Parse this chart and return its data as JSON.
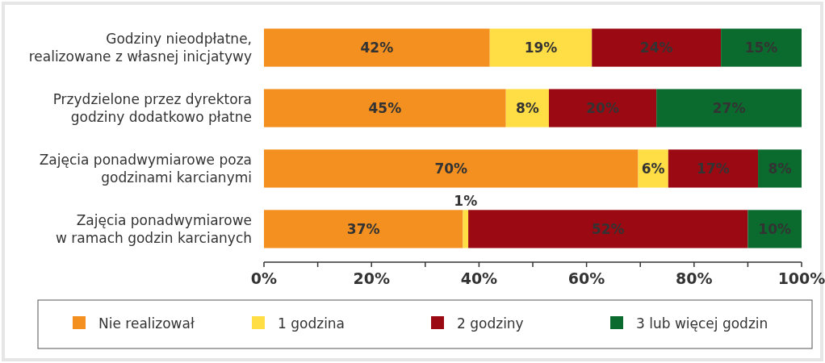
{
  "chart_data": {
    "type": "bar",
    "orientation": "horizontal",
    "stacked": true,
    "categories": [
      "Godziny nieodpłatne,\nrealizowane z własnej inicjatywy",
      "Przydzielone przez dyrektora\ngodziny dodatkowo płatne",
      "Zajęcia ponadwymiarowe poza\ngodzinami karcianymi",
      "Zajęcia ponadwymiarowe\nw ramach godzin karcianych"
    ],
    "series": [
      {
        "name": "Nie realizował",
        "color": "#f39020",
        "values": [
          42,
          45,
          69.6,
          37
        ],
        "value_labels": [
          "42%",
          "45%",
          "70%",
          "37%"
        ]
      },
      {
        "name": "1 godzina",
        "color": "#ffdd44",
        "values": [
          19,
          8,
          5.6,
          1
        ],
        "value_labels": [
          "19%",
          "8%",
          "6%",
          "1%"
        ]
      },
      {
        "name": "2 godziny",
        "color": "#9b0a12",
        "values": [
          24,
          20,
          16.7,
          52
        ],
        "value_labels": [
          "24%",
          "20%",
          "17%",
          "52%"
        ]
      },
      {
        "name": "3 lub więcej godzin",
        "color": "#0b6b2e",
        "values": [
          15,
          27,
          8.1,
          10
        ],
        "value_labels": [
          "15%",
          "27%",
          "8%",
          "10%"
        ]
      }
    ],
    "xlim": [
      0,
      100
    ],
    "xticks": [
      {
        "value": 0,
        "label": "0%"
      },
      {
        "value": 10,
        "label": null
      },
      {
        "value": 20,
        "label": "20%"
      },
      {
        "value": 30,
        "label": null
      },
      {
        "value": 40,
        "label": "40%"
      },
      {
        "value": 50,
        "label": null
      },
      {
        "value": 60,
        "label": "60%"
      },
      {
        "value": 70,
        "label": null
      },
      {
        "value": 80,
        "label": "80%"
      },
      {
        "value": 90,
        "label": null
      },
      {
        "value": 100,
        "label": "100%"
      }
    ],
    "legend": "bottom",
    "grid": false
  }
}
